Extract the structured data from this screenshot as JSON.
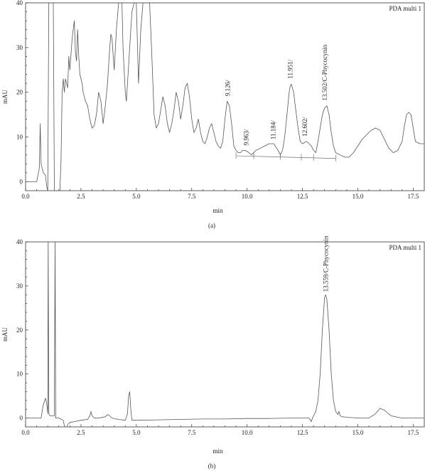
{
  "chart_data": [
    {
      "panel_label": "(a)",
      "type": "line",
      "legend": "PDA multi 1",
      "xlabel": "min",
      "ylabel": "mAU",
      "xlim": [
        0,
        18
      ],
      "ylim": [
        -2,
        40
      ],
      "x_ticks": [
        0.0,
        2.5,
        5.0,
        7.5,
        10.0,
        12.5,
        15.0,
        17.5
      ],
      "x_tick_labels": [
        "0.0",
        "2.5",
        "5.0",
        "7.5",
        "10.0",
        "12.5",
        "15.0",
        "17.5"
      ],
      "y_ticks": [
        0,
        10,
        20,
        30,
        40
      ],
      "y_tick_labels": [
        "0",
        "10",
        "20",
        "30",
        "40"
      ],
      "series": [
        {
          "x": [
            0.0,
            0.5,
            0.62,
            0.66,
            0.7,
            0.8,
            0.9,
            0.95,
            1.0,
            1.05,
            1.1,
            1.15,
            1.2,
            1.25,
            1.3,
            1.35,
            1.4,
            1.45,
            1.5,
            1.55,
            1.6,
            1.65,
            1.7,
            1.75,
            1.8,
            1.9,
            1.95,
            2.0,
            2.1,
            2.15,
            2.2,
            2.25,
            2.3,
            2.35,
            2.4,
            2.45,
            2.5,
            2.55,
            2.6,
            2.7,
            2.8,
            2.9,
            3.0,
            3.1,
            3.2,
            3.3,
            3.4,
            3.5,
            3.6,
            3.7,
            3.8,
            3.85,
            3.9,
            4.0,
            4.1,
            4.2,
            4.3,
            4.35,
            4.4,
            4.5,
            4.55,
            4.6,
            4.7,
            4.8,
            4.9,
            5.0,
            5.1,
            5.2,
            5.3,
            5.4,
            5.5,
            5.6,
            5.7,
            5.8,
            5.9,
            6.0,
            6.1,
            6.2,
            6.3,
            6.4,
            6.5,
            6.6,
            6.7,
            6.8,
            6.9,
            7.0,
            7.1,
            7.2,
            7.3,
            7.4,
            7.5,
            7.6,
            7.7,
            7.8,
            7.9,
            8.0,
            8.1,
            8.2,
            8.3,
            8.4,
            8.5,
            8.6,
            8.7,
            8.8,
            8.9,
            9.0,
            9.1,
            9.2,
            9.3,
            9.4,
            9.5,
            9.6,
            9.7,
            9.8,
            9.9,
            10.0,
            10.2,
            10.4,
            10.6,
            10.8,
            11.0,
            11.2,
            11.4,
            11.5,
            11.6,
            11.7,
            11.8,
            11.9,
            11.95,
            12.0,
            12.1,
            12.2,
            12.3,
            12.4,
            12.5,
            12.6,
            12.7,
            12.8,
            12.9,
            13.0,
            13.1,
            13.2,
            13.3,
            13.4,
            13.5,
            13.6,
            13.7,
            13.8,
            13.9,
            14.0,
            14.2,
            14.4,
            14.6,
            14.8,
            15.0,
            15.2,
            15.4,
            15.6,
            15.8,
            16.0,
            16.2,
            16.4,
            16.6,
            16.8,
            17.0,
            17.1,
            17.2,
            17.3,
            17.4,
            17.5,
            17.6,
            17.8,
            18.0
          ],
          "y": [
            0.0,
            0.0,
            3.0,
            13.0,
            4.0,
            2.0,
            1.5,
            -1.0,
            -2.0,
            40.0,
            40.0,
            40.0,
            40.0,
            40.0,
            -2.0,
            -2.0,
            -2.0,
            -2.0,
            -2.0,
            -2.0,
            5.0,
            20.0,
            23.0,
            20.0,
            23.0,
            21.0,
            28.0,
            25.0,
            32.0,
            34.0,
            36.0,
            29.0,
            27.0,
            34.0,
            28.0,
            24.0,
            23.0,
            22.0,
            20.0,
            18.0,
            17.0,
            14.0,
            12.0,
            12.5,
            15.0,
            20.0,
            18.0,
            13.0,
            17.0,
            22.0,
            30.0,
            33.0,
            32.0,
            25.0,
            34.0,
            40.0,
            40.0,
            40.0,
            30.0,
            20.0,
            18.0,
            22.0,
            30.0,
            38.0,
            40.0,
            40.0,
            22.0,
            34.0,
            40.0,
            40.0,
            40.0,
            40.0,
            28.0,
            15.0,
            12.0,
            13.0,
            16.0,
            19.0,
            17.0,
            13.0,
            11.0,
            13.0,
            16.0,
            20.0,
            18.0,
            14.0,
            17.0,
            21.0,
            22.0,
            19.0,
            14.0,
            11.0,
            12.0,
            14.0,
            11.0,
            9.0,
            8.5,
            10.0,
            12.0,
            13.0,
            11.0,
            9.0,
            8.0,
            7.5,
            9.0,
            14.0,
            18.0,
            17.0,
            13.0,
            8.0,
            7.0,
            6.5,
            6.5,
            7.0,
            7.0,
            6.8,
            6.0,
            7.0,
            7.5,
            8.0,
            8.5,
            8.5,
            7.0,
            6.0,
            7.0,
            10.0,
            15.0,
            20.0,
            21.5,
            21.8,
            20.0,
            16.0,
            12.0,
            9.0,
            8.5,
            8.8,
            9.0,
            8.5,
            8.0,
            7.0,
            6.5,
            9.0,
            12.0,
            15.0,
            16.5,
            17.0,
            15.0,
            11.0,
            8.0,
            6.5,
            6.0,
            5.5,
            5.5,
            6.5,
            8.0,
            9.5,
            10.5,
            11.5,
            12.0,
            11.5,
            9.5,
            7.5,
            6.5,
            7.0,
            9.0,
            12.5,
            15.0,
            15.5,
            15.0,
            12.0,
            9.0,
            8.5,
            8.5
          ]
        }
      ],
      "baselines": [
        {
          "x": [
            9.5,
            14.0
          ],
          "y": [
            5.8,
            5.2
          ]
        }
      ],
      "annotations": [
        {
          "text": "9.126/",
          "x": 9.126,
          "y": 18.5
        },
        {
          "text": "9.963/",
          "x": 9.963,
          "y": 7.5
        },
        {
          "text": "11.184/",
          "x": 11.184,
          "y": 8.8
        },
        {
          "text": "11.951/",
          "x": 11.951,
          "y": 22.4
        },
        {
          "text": "12.602/",
          "x": 12.602,
          "y": 9.5
        },
        {
          "text": "13.502/C-Phycocynin",
          "x": 13.502,
          "y": 17.5
        }
      ],
      "boundary_markers": [
        9.5,
        10.3,
        11.5,
        12.45,
        13.0,
        14.0
      ]
    },
    {
      "panel_label": "(b)",
      "type": "line",
      "legend": "PDA multi 1",
      "xlabel": "min",
      "ylabel": "mAU",
      "xlim": [
        0,
        18
      ],
      "ylim": [
        -2,
        40
      ],
      "x_ticks": [
        0.0,
        2.5,
        5.0,
        7.5,
        10.0,
        12.5,
        15.0,
        17.5
      ],
      "x_tick_labels": [
        "0.0",
        "2.5",
        "5.0",
        "7.5",
        "10.0",
        "12.5",
        "15.0",
        "17.5"
      ],
      "y_ticks": [
        0,
        10,
        20,
        30,
        40
      ],
      "y_tick_labels": [
        "0",
        "10",
        "20",
        "30",
        "40"
      ],
      "series": [
        {
          "x": [
            0.0,
            0.7,
            0.8,
            0.9,
            0.95,
            1.0,
            1.02,
            1.05,
            1.1,
            1.2,
            1.3,
            1.33,
            1.36,
            1.4,
            1.5,
            1.7,
            1.8,
            1.9,
            2.0,
            2.2,
            2.5,
            2.8,
            2.9,
            2.95,
            3.0,
            3.1,
            3.3,
            3.6,
            3.7,
            3.8,
            3.9,
            4.2,
            4.5,
            4.6,
            4.65,
            4.7,
            4.75,
            4.8,
            5.0,
            6.0,
            7.0,
            8.0,
            9.0,
            10.0,
            11.0,
            12.0,
            12.8,
            12.9,
            12.95,
            13.0,
            13.1,
            13.2,
            13.3,
            13.4,
            13.5,
            13.55,
            13.6,
            13.7,
            13.8,
            13.9,
            14.0,
            14.1,
            14.15,
            14.2,
            14.3,
            14.5,
            15.0,
            15.5,
            15.8,
            16.0,
            16.2,
            16.5,
            17.0,
            17.5,
            18.0
          ],
          "y": [
            0.0,
            0.0,
            3.0,
            4.5,
            3.5,
            1.0,
            40.0,
            1.0,
            0.5,
            0.5,
            0.5,
            40.0,
            0.0,
            0.0,
            0.0,
            -0.5,
            -3.0,
            -1.5,
            -1.0,
            -0.8,
            -0.5,
            -0.3,
            0.5,
            1.5,
            0.5,
            0.0,
            0.0,
            0.3,
            0.8,
            0.5,
            0.0,
            -0.3,
            -0.5,
            1.0,
            5.0,
            6.0,
            2.0,
            -0.5,
            -0.5,
            -0.4,
            -0.3,
            -0.2,
            -0.2,
            -0.1,
            -0.1,
            0.0,
            0.0,
            -0.8,
            0.0,
            0.5,
            1.5,
            4.0,
            10.0,
            20.0,
            27.5,
            28.0,
            27.0,
            20.0,
            10.0,
            4.0,
            1.5,
            0.8,
            1.5,
            0.5,
            0.3,
            0.2,
            0.0,
            0.0,
            1.0,
            2.2,
            1.8,
            0.5,
            0.0,
            0.0,
            0.0
          ]
        }
      ],
      "annotations": [
        {
          "text": "13.559/C-Phycocynin",
          "x": 13.559,
          "y": 28.0
        }
      ]
    }
  ]
}
